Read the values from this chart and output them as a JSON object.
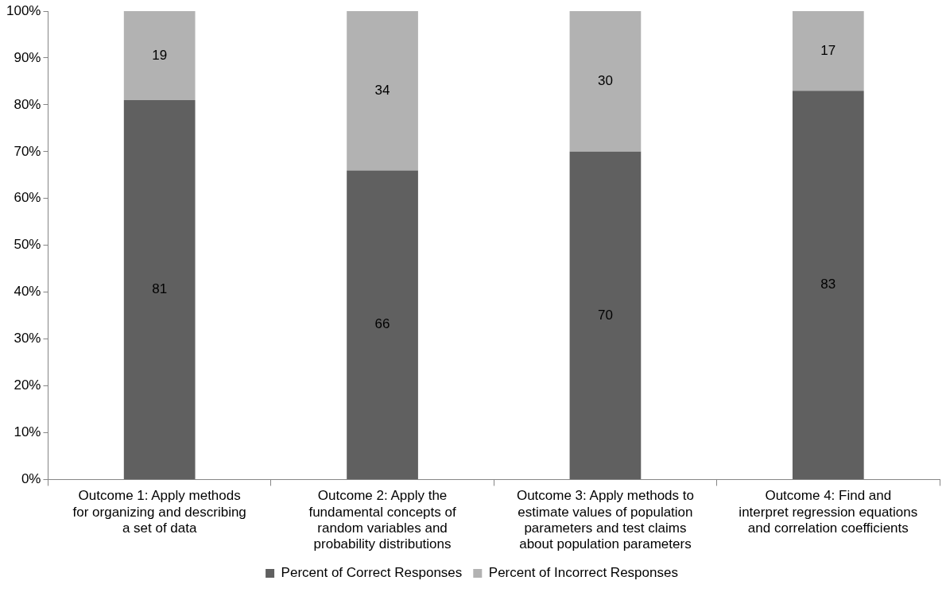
{
  "chart_data": {
    "type": "bar",
    "stacked": true,
    "categories": [
      "Outcome 1: Apply methods for organizing and describing a set of data",
      "Outcome 2: Apply the fundamental concepts of random variables and probability distributions",
      "Outcome 3: Apply methods to estimate values of population parameters and test claims about population parameters",
      "Outcome 4: Find and interpret regression equations and correlation coefficients"
    ],
    "series": [
      {
        "name": "Percent of Correct Responses",
        "color": "#606060",
        "values": [
          81,
          66,
          70,
          83
        ]
      },
      {
        "name": "Percent of Incorrect Responses",
        "color": "#b2b2b2",
        "values": [
          19,
          34,
          30,
          17
        ]
      }
    ],
    "ylim": [
      0,
      100
    ],
    "yticks": [
      {
        "value": 0,
        "label": "0%"
      },
      {
        "value": 10,
        "label": "10%"
      },
      {
        "value": 20,
        "label": "20%"
      },
      {
        "value": 30,
        "label": "30%"
      },
      {
        "value": 40,
        "label": "40%"
      },
      {
        "value": 50,
        "label": "50%"
      },
      {
        "value": 60,
        "label": "60%"
      },
      {
        "value": 70,
        "label": "70%"
      },
      {
        "value": 80,
        "label": "80%"
      },
      {
        "value": 90,
        "label": "90%"
      },
      {
        "value": 100,
        "label": "100%"
      }
    ],
    "grid": false,
    "legend": "bottom",
    "data_labels": true
  }
}
